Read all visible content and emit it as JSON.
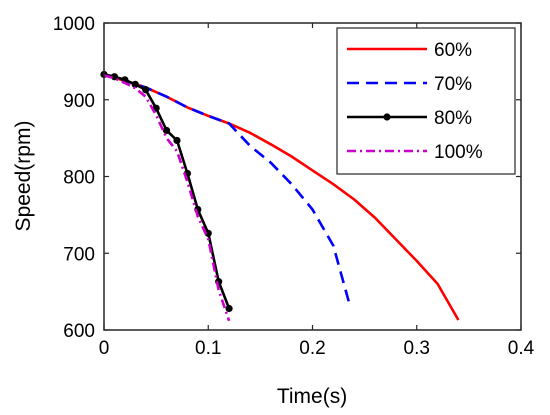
{
  "chart_data": {
    "type": "line",
    "title": "",
    "xlabel": "Time(s)",
    "ylabel": "Speed(rpm)",
    "xlim": [
      0,
      0.4
    ],
    "ylim": [
      600,
      1000
    ],
    "xticks": [
      0,
      0.1,
      0.2,
      0.3,
      0.4
    ],
    "xtick_labels": [
      "0",
      "0.1",
      "0.2",
      "0.3",
      "0.4"
    ],
    "yticks": [
      600,
      700,
      800,
      900,
      1000
    ],
    "ytick_labels": [
      "600",
      "700",
      "800",
      "900",
      "1000"
    ],
    "grid": false,
    "legend_position": "top-right",
    "series": [
      {
        "name": "60%",
        "color": "#ff0000",
        "style": "solid",
        "marker": "none",
        "x": [
          0,
          0.02,
          0.04,
          0.06,
          0.08,
          0.1,
          0.12,
          0.14,
          0.16,
          0.18,
          0.2,
          0.22,
          0.24,
          0.26,
          0.28,
          0.3,
          0.32,
          0.34
        ],
        "y": [
          932,
          925,
          916,
          904,
          890,
          879,
          869,
          857,
          842,
          826,
          808,
          790,
          770,
          746,
          718,
          690,
          660,
          613
        ]
      },
      {
        "name": "70%",
        "color": "#0000ff",
        "style": "dashed",
        "marker": "none",
        "x": [
          0,
          0.02,
          0.04,
          0.06,
          0.08,
          0.1,
          0.12,
          0.14,
          0.16,
          0.18,
          0.2,
          0.22,
          0.235
        ],
        "y": [
          932,
          925,
          916,
          904,
          890,
          879,
          869,
          840,
          818,
          790,
          757,
          710,
          636
        ]
      },
      {
        "name": "80%",
        "color": "#000000",
        "style": "solid",
        "marker": "dot",
        "x": [
          0,
          0.01,
          0.02,
          0.03,
          0.04,
          0.05,
          0.06,
          0.07,
          0.08,
          0.09,
          0.1,
          0.11,
          0.12
        ],
        "y": [
          933,
          930,
          926,
          920,
          913,
          889,
          860,
          847,
          804,
          757,
          726,
          663,
          628
        ]
      },
      {
        "name": "100%",
        "color": "#cc00cc",
        "style": "dashdot",
        "marker": "none",
        "x": [
          0,
          0.01,
          0.02,
          0.03,
          0.04,
          0.05,
          0.06,
          0.07,
          0.08,
          0.09,
          0.1,
          0.11,
          0.12
        ],
        "y": [
          932,
          928,
          922,
          915,
          904,
          880,
          850,
          833,
          793,
          748,
          718,
          652,
          612
        ]
      }
    ]
  }
}
